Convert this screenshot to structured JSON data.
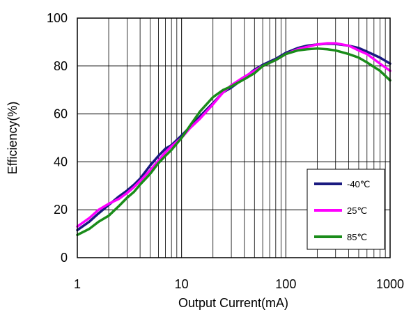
{
  "chart_data": {
    "type": "line",
    "title": "",
    "xlabel": "Output Current(mA)",
    "ylabel": "Efficiency(%)",
    "xscale": "log",
    "xlim": [
      1,
      1000
    ],
    "ylim": [
      0,
      100
    ],
    "xticks": [
      1,
      10,
      100,
      1000
    ],
    "xtick_labels": [
      "1",
      "10",
      "100",
      "1000"
    ],
    "yticks": [
      0,
      20,
      40,
      60,
      80,
      100
    ],
    "ytick_labels": [
      "0",
      "20",
      "40",
      "60",
      "80",
      "100"
    ],
    "grid": true,
    "legend_position": "bottom-right",
    "series": [
      {
        "name": "-40℃",
        "color": "#1a1a80",
        "x": [
          1,
          1.3,
          1.6,
          2,
          2.5,
          3,
          3.5,
          4,
          5,
          6,
          7,
          8,
          10,
          12,
          15,
          20,
          25,
          30,
          40,
          50,
          60,
          80,
          100,
          130,
          160,
          200,
          250,
          300,
          400,
          500,
          600,
          800,
          1000
        ],
        "y": [
          11.5,
          15,
          18.5,
          22,
          25.5,
          28,
          30.5,
          33,
          38.5,
          42.5,
          45.5,
          47,
          51,
          54.5,
          59,
          64.5,
          69,
          71,
          75,
          78.5,
          80.5,
          83,
          85.5,
          87.5,
          88.5,
          89,
          89.3,
          89.2,
          88.5,
          87.5,
          86,
          83.5,
          81
        ]
      },
      {
        "name": "25℃",
        "color": "#ff00ff",
        "x": [
          1,
          1.3,
          1.6,
          2,
          2.5,
          3,
          3.5,
          4,
          5,
          6,
          7,
          8,
          10,
          12,
          15,
          20,
          25,
          30,
          40,
          50,
          60,
          80,
          100,
          130,
          160,
          200,
          250,
          300,
          400,
          500,
          600,
          800,
          1000
        ],
        "y": [
          13,
          16.5,
          20,
          22.5,
          24.5,
          27,
          29.5,
          32,
          36.5,
          40.5,
          44,
          46.5,
          50,
          54,
          58,
          64,
          69,
          72,
          75.5,
          78,
          80,
          82.5,
          85,
          87,
          88,
          89,
          89.5,
          89.5,
          88.5,
          86.5,
          85,
          81,
          78
        ]
      },
      {
        "name": "85℃",
        "color": "#1a8c1a",
        "x": [
          1,
          1.3,
          1.6,
          2,
          2.5,
          3,
          3.5,
          4,
          5,
          6,
          7,
          8,
          10,
          12,
          15,
          20,
          25,
          30,
          40,
          50,
          60,
          80,
          100,
          130,
          160,
          200,
          250,
          300,
          400,
          500,
          600,
          800,
          1000
        ],
        "y": [
          9.5,
          12,
          15,
          17.5,
          21.5,
          25,
          27.5,
          30.5,
          35,
          39.5,
          42.5,
          45,
          50,
          55,
          61,
          67,
          70,
          71.5,
          74.5,
          77,
          80,
          82.5,
          85,
          86.5,
          87,
          87.3,
          87,
          86.5,
          85,
          83.5,
          81.5,
          78,
          74
        ]
      }
    ]
  }
}
